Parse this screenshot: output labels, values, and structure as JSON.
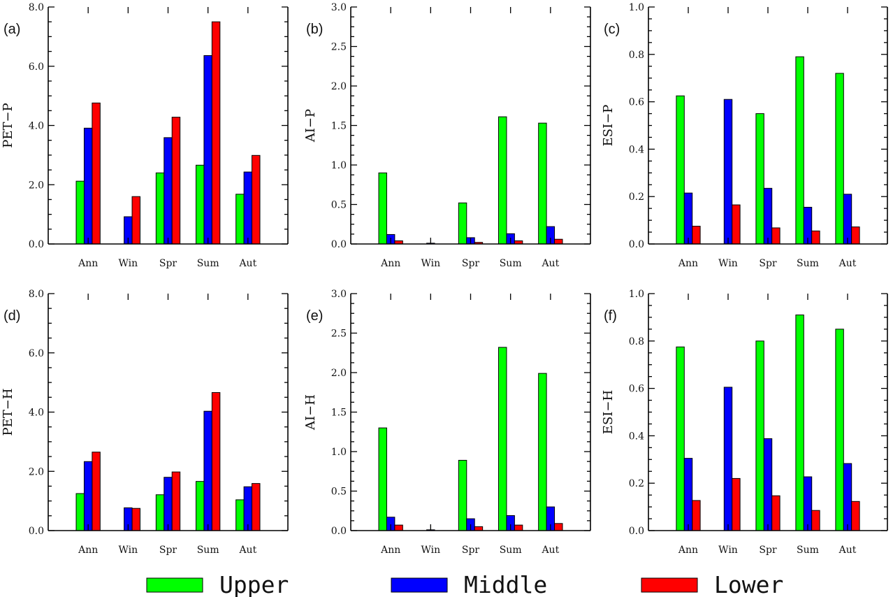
{
  "chart_data": [
    {
      "type": "bar",
      "panel_label": "(a)",
      "ylabel": "PET−P",
      "ylim": [
        0,
        8
      ],
      "yticks": [
        0,
        2,
        4,
        6,
        8
      ],
      "ytick_labels": [
        "0.0",
        "2.0",
        "4.0",
        "6.0",
        "8.0"
      ],
      "categories": [
        "Ann",
        "Win",
        "Spr",
        "Sum",
        "Aut"
      ],
      "series": [
        {
          "name": "Upper",
          "values": [
            2.12,
            0.0,
            2.4,
            2.66,
            1.68
          ]
        },
        {
          "name": "Middle",
          "values": [
            3.91,
            0.92,
            3.59,
            6.36,
            2.43
          ]
        },
        {
          "name": "Lower",
          "values": [
            4.76,
            1.6,
            4.28,
            7.5,
            2.99
          ]
        }
      ]
    },
    {
      "type": "bar",
      "panel_label": "(b)",
      "ylabel": "AI−P",
      "ylim": [
        0,
        3
      ],
      "yticks": [
        0,
        0.5,
        1,
        1.5,
        2,
        2.5,
        3
      ],
      "ytick_labels": [
        "0.0",
        "0.5",
        "1.0",
        "1.5",
        "2.0",
        "2.5",
        "3.0"
      ],
      "categories": [
        "Ann",
        "Win",
        "Spr",
        "Sum",
        "Aut"
      ],
      "series": [
        {
          "name": "Upper",
          "values": [
            0.9,
            0.0,
            0.52,
            1.61,
            1.53
          ]
        },
        {
          "name": "Middle",
          "values": [
            0.12,
            0.01,
            0.08,
            0.13,
            0.22
          ]
        },
        {
          "name": "Lower",
          "values": [
            0.04,
            0.0,
            0.02,
            0.04,
            0.06
          ]
        }
      ]
    },
    {
      "type": "bar",
      "panel_label": "(c)",
      "ylabel": "ESI−P",
      "ylim": [
        0,
        1
      ],
      "yticks": [
        0,
        0.2,
        0.4,
        0.6,
        0.8,
        1
      ],
      "ytick_labels": [
        "0.0",
        "0.2",
        "0.4",
        "0.6",
        "0.8",
        "1.0"
      ],
      "categories": [
        "Ann",
        "Win",
        "Spr",
        "Sum",
        "Aut"
      ],
      "series": [
        {
          "name": "Upper",
          "values": [
            0.625,
            0.0,
            0.55,
            0.79,
            0.72
          ]
        },
        {
          "name": "Middle",
          "values": [
            0.215,
            0.61,
            0.235,
            0.155,
            0.21
          ]
        },
        {
          "name": "Lower",
          "values": [
            0.075,
            0.165,
            0.068,
            0.055,
            0.072
          ]
        }
      ]
    },
    {
      "type": "bar",
      "panel_label": "(d)",
      "ylabel": "PET−H",
      "ylim": [
        0,
        8
      ],
      "yticks": [
        0,
        2,
        4,
        6,
        8
      ],
      "ytick_labels": [
        "0.0",
        "2.0",
        "4.0",
        "6.0",
        "8.0"
      ],
      "categories": [
        "Ann",
        "Win",
        "Spr",
        "Sum",
        "Aut"
      ],
      "series": [
        {
          "name": "Upper",
          "values": [
            1.25,
            0.0,
            1.21,
            1.66,
            1.04
          ]
        },
        {
          "name": "Middle",
          "values": [
            2.33,
            0.77,
            1.8,
            4.03,
            1.48
          ]
        },
        {
          "name": "Lower",
          "values": [
            2.65,
            0.75,
            1.98,
            4.66,
            1.59
          ]
        }
      ]
    },
    {
      "type": "bar",
      "panel_label": "(e)",
      "ylabel": "AI−H",
      "ylim": [
        0,
        3
      ],
      "yticks": [
        0,
        0.5,
        1,
        1.5,
        2,
        2.5,
        3
      ],
      "ytick_labels": [
        "0.0",
        "0.5",
        "1.0",
        "1.5",
        "2.0",
        "2.5",
        "3.0"
      ],
      "categories": [
        "Ann",
        "Win",
        "Spr",
        "Sum",
        "Aut"
      ],
      "series": [
        {
          "name": "Upper",
          "values": [
            1.3,
            0.0,
            0.89,
            2.32,
            1.99
          ]
        },
        {
          "name": "Middle",
          "values": [
            0.17,
            0.01,
            0.15,
            0.19,
            0.3
          ]
        },
        {
          "name": "Lower",
          "values": [
            0.07,
            0.0,
            0.05,
            0.07,
            0.09
          ]
        }
      ]
    },
    {
      "type": "bar",
      "panel_label": "(f)",
      "ylabel": "ESI−H",
      "ylim": [
        0,
        1
      ],
      "yticks": [
        0,
        0.2,
        0.4,
        0.6,
        0.8,
        1
      ],
      "ytick_labels": [
        "0.0",
        "0.2",
        "0.4",
        "0.6",
        "0.8",
        "1.0"
      ],
      "categories": [
        "Ann",
        "Win",
        "Spr",
        "Sum",
        "Aut"
      ],
      "series": [
        {
          "name": "Upper",
          "values": [
            0.775,
            0.0,
            0.8,
            0.91,
            0.85
          ]
        },
        {
          "name": "Middle",
          "values": [
            0.305,
            0.605,
            0.388,
            0.227,
            0.283
          ]
        },
        {
          "name": "Lower",
          "values": [
            0.127,
            0.22,
            0.147,
            0.085,
            0.123
          ]
        }
      ]
    }
  ],
  "legend": {
    "position": "bottom",
    "items": [
      {
        "name": "Upper",
        "color": "#00ff00"
      },
      {
        "name": "Middle",
        "color": "#0000ff"
      },
      {
        "name": "Lower",
        "color": "#ff0000"
      }
    ]
  }
}
